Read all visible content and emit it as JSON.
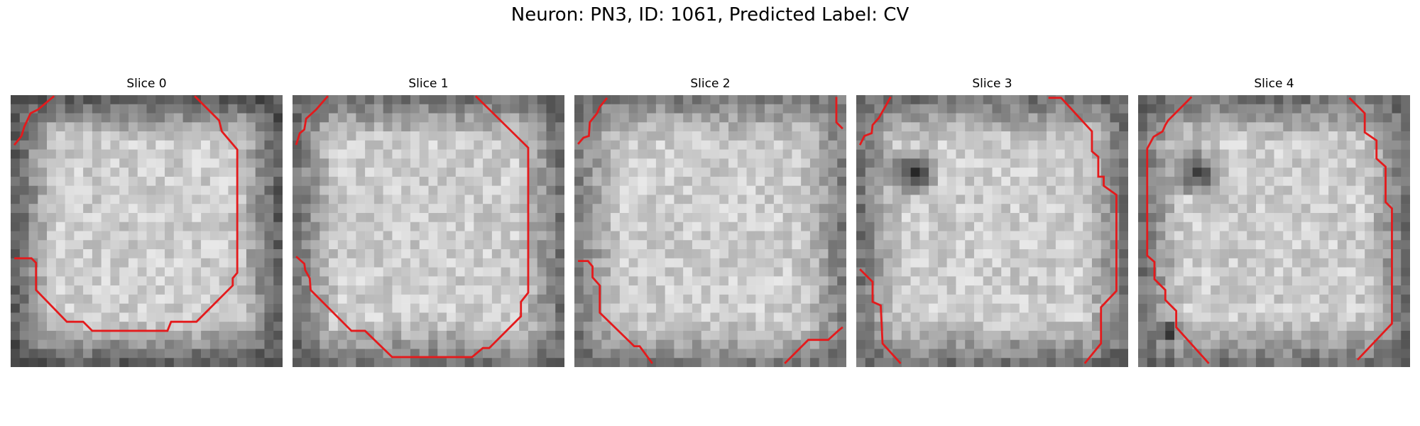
{
  "figure": {
    "title": "Neuron: PN3, ID: 1061, Predicted Label: CV"
  },
  "contour_color": "#e41a1c",
  "panels": [
    {
      "title": "Slice 0",
      "seed": 11,
      "dark_blobs": [],
      "edge_darkness": 0.55
    },
    {
      "title": "Slice 1",
      "seed": 23,
      "dark_blobs": [],
      "edge_darkness": 0.45
    },
    {
      "title": "Slice 2",
      "seed": 37,
      "dark_blobs": [],
      "edge_darkness": 0.4
    },
    {
      "title": "Slice 3",
      "seed": 41,
      "dark_blobs": [
        "upper-left"
      ],
      "edge_darkness": 0.45
    },
    {
      "title": "Slice 4",
      "seed": 59,
      "dark_blobs": [
        "upper-left",
        "lower-left"
      ],
      "edge_darkness": 0.45
    }
  ]
}
